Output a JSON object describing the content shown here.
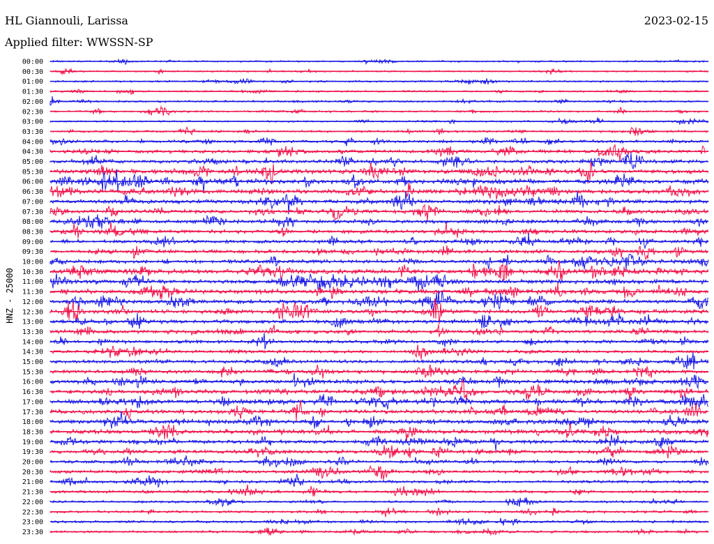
{
  "header": {
    "station": "HL Giannouli, Larissa",
    "date": "2023-02-15",
    "filter_label": "Applied filter: WWSSN-SP"
  },
  "y_axis_label": "HNZ - 25000",
  "colors": {
    "blue": "#1a1ae6",
    "red": "#f0124a",
    "text": "#000000"
  },
  "chart_data": {
    "type": "line",
    "title": "HL Giannouli, Larissa",
    "subtitle": "Applied filter: WWSSN-SP",
    "ylabel": "HNZ - 25000",
    "xlabel": "",
    "row_minutes": 30,
    "series_colors_alternate": [
      "blue",
      "red"
    ],
    "grid": false,
    "tick_labels": [
      "00:00",
      "00:30",
      "01:00",
      "01:30",
      "02:00",
      "02:30",
      "03:00",
      "03:30",
      "04:00",
      "04:30",
      "05:00",
      "05:30",
      "06:00",
      "06:30",
      "07:00",
      "07:30",
      "08:00",
      "08:30",
      "09:00",
      "09:30",
      "10:00",
      "10:30",
      "11:00",
      "11:30",
      "12:00",
      "12:30",
      "13:00",
      "13:30",
      "14:00",
      "14:30",
      "15:00",
      "15:30",
      "16:00",
      "16:30",
      "17:00",
      "17:30",
      "18:00",
      "18:30",
      "19:00",
      "19:30",
      "20:00",
      "20:30",
      "21:00",
      "21:30",
      "22:00",
      "22:30",
      "23:00",
      "23:30"
    ],
    "activity_level": [
      0.15,
      0.12,
      0.15,
      0.15,
      0.2,
      0.2,
      0.15,
      0.25,
      0.4,
      0.5,
      0.55,
      0.75,
      0.85,
      0.75,
      0.7,
      0.6,
      0.55,
      0.55,
      0.5,
      0.55,
      0.6,
      0.8,
      0.75,
      0.75,
      0.7,
      0.7,
      0.65,
      0.55,
      0.5,
      0.45,
      0.5,
      0.55,
      0.65,
      0.7,
      0.75,
      0.7,
      0.65,
      0.65,
      0.6,
      0.55,
      0.45,
      0.45,
      0.4,
      0.35,
      0.25,
      0.3,
      0.3,
      0.3
    ]
  }
}
